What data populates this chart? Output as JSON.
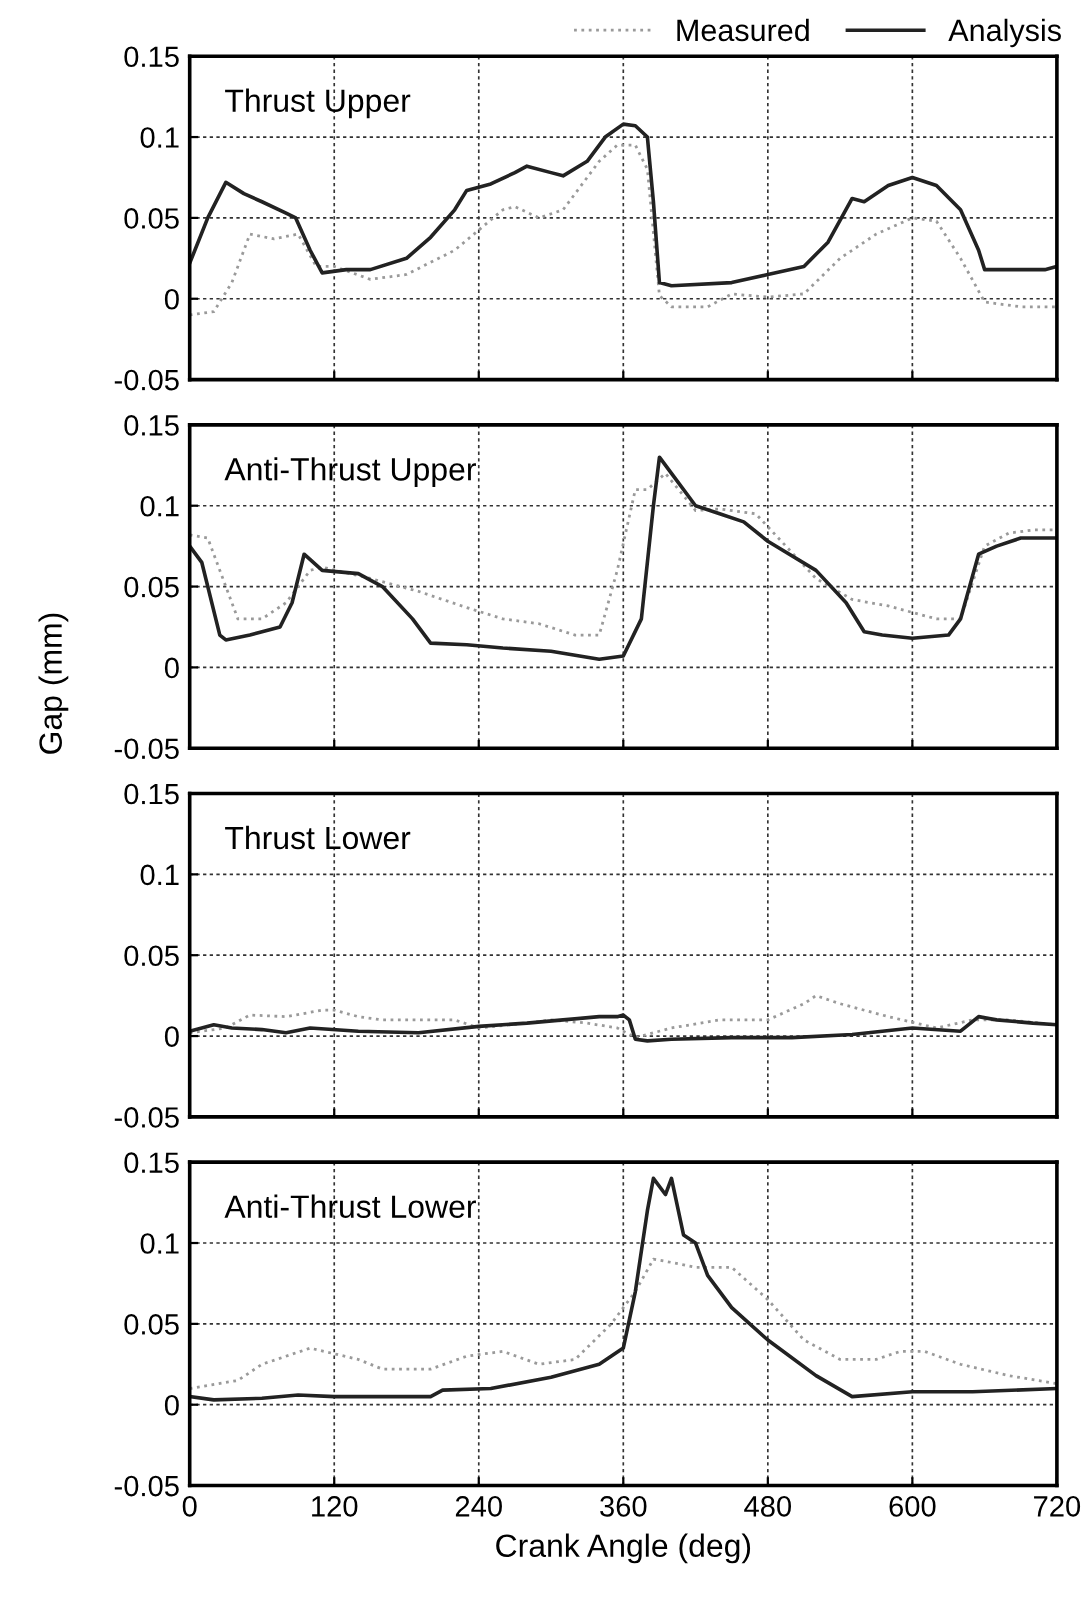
{
  "chart_data": [
    {
      "type": "line",
      "title": "Thrust Upper",
      "xlim": [
        0,
        720
      ],
      "xticks": [
        0,
        120,
        240,
        360,
        480,
        600,
        720
      ],
      "ylim": [
        -0.05,
        0.15
      ],
      "yticks": [
        -0.05,
        0,
        0.05,
        0.1,
        0.15
      ],
      "grid": true,
      "legend": "top right",
      "tick_labels": "y",
      "series": [
        {
          "name": "Measured",
          "color": "#9a9a9a",
          "line_style": "dotted",
          "x": [
            0,
            20,
            35,
            50,
            70,
            90,
            105,
            120,
            150,
            180,
            220,
            260,
            270,
            290,
            310,
            340,
            355,
            370,
            380,
            390,
            400,
            430,
            450,
            480,
            510,
            540,
            570,
            600,
            620,
            640,
            660,
            690,
            720
          ],
          "values": [
            -0.01,
            -0.008,
            0.01,
            0.04,
            0.037,
            0.04,
            0.02,
            0.02,
            0.012,
            0.015,
            0.03,
            0.055,
            0.057,
            0.05,
            0.055,
            0.085,
            0.095,
            0.095,
            0.08,
            0.002,
            -0.005,
            -0.005,
            0.003,
            0.001,
            0.003,
            0.025,
            0.04,
            0.05,
            0.048,
            0.025,
            -0.002,
            -0.005,
            -0.005
          ]
        },
        {
          "name": "Analysis",
          "color": "#222222",
          "line_style": "solid",
          "x": [
            0,
            15,
            30,
            45,
            60,
            80,
            88,
            100,
            110,
            130,
            150,
            180,
            200,
            220,
            230,
            250,
            270,
            280,
            300,
            310,
            330,
            345,
            360,
            370,
            380,
            385,
            390,
            400,
            450,
            480,
            510,
            530,
            550,
            560,
            580,
            600,
            620,
            640,
            655,
            660,
            680,
            710,
            720
          ],
          "values": [
            0.022,
            0.05,
            0.072,
            0.065,
            0.06,
            0.053,
            0.05,
            0.03,
            0.016,
            0.018,
            0.018,
            0.025,
            0.038,
            0.055,
            0.067,
            0.071,
            0.078,
            0.082,
            0.078,
            0.076,
            0.085,
            0.1,
            0.108,
            0.107,
            0.1,
            0.06,
            0.01,
            0.008,
            0.01,
            0.015,
            0.02,
            0.035,
            0.062,
            0.06,
            0.07,
            0.075,
            0.07,
            0.055,
            0.03,
            0.018,
            0.018,
            0.018,
            0.02
          ]
        }
      ]
    },
    {
      "type": "line",
      "title": "Anti-Thrust Upper",
      "ylabel": "Gap (mm)",
      "xlim": [
        0,
        720
      ],
      "xticks": [
        0,
        120,
        240,
        360,
        480,
        600,
        720
      ],
      "ylim": [
        -0.05,
        0.15
      ],
      "yticks": [
        -0.05,
        0,
        0.05,
        0.1,
        0.15
      ],
      "grid": true,
      "tick_labels": "y",
      "series": [
        {
          "color": "#9a9a9a",
          "line_style": "dotted",
          "x": [
            0,
            15,
            30,
            40,
            60,
            80,
            100,
            110,
            150,
            190,
            230,
            260,
            290,
            320,
            340,
            355,
            370,
            380,
            395,
            420,
            440,
            470,
            520,
            550,
            580,
            620,
            640,
            660,
            680,
            700,
            720
          ],
          "values": [
            0.082,
            0.08,
            0.05,
            0.03,
            0.03,
            0.04,
            0.06,
            0.062,
            0.055,
            0.047,
            0.037,
            0.03,
            0.027,
            0.02,
            0.02,
            0.06,
            0.11,
            0.11,
            0.12,
            0.097,
            0.098,
            0.095,
            0.055,
            0.042,
            0.038,
            0.03,
            0.03,
            0.075,
            0.083,
            0.085,
            0.085
          ]
        },
        {
          "color": "#222222",
          "line_style": "solid",
          "x": [
            0,
            10,
            25,
            30,
            50,
            75,
            85,
            95,
            110,
            140,
            160,
            185,
            200,
            230,
            260,
            300,
            340,
            360,
            375,
            385,
            390,
            400,
            420,
            440,
            460,
            480,
            520,
            545,
            560,
            575,
            600,
            630,
            640,
            655,
            670,
            690,
            720
          ],
          "values": [
            0.075,
            0.065,
            0.02,
            0.017,
            0.02,
            0.025,
            0.04,
            0.07,
            0.06,
            0.058,
            0.05,
            0.03,
            0.015,
            0.014,
            0.012,
            0.01,
            0.005,
            0.007,
            0.03,
            0.1,
            0.13,
            0.12,
            0.1,
            0.095,
            0.09,
            0.078,
            0.06,
            0.04,
            0.022,
            0.02,
            0.018,
            0.02,
            0.03,
            0.07,
            0.075,
            0.08,
            0.08
          ]
        }
      ]
    },
    {
      "type": "line",
      "title": "Thrust Lower",
      "xlim": [
        0,
        720
      ],
      "xticks": [
        0,
        120,
        240,
        360,
        480,
        600,
        720
      ],
      "ylim": [
        -0.05,
        0.15
      ],
      "yticks": [
        -0.05,
        0,
        0.05,
        0.1,
        0.15
      ],
      "grid": true,
      "tick_labels": "y",
      "series": [
        {
          "color": "#9a9a9a",
          "line_style": "dotted",
          "x": [
            0,
            30,
            50,
            80,
            110,
            120,
            140,
            160,
            190,
            220,
            240,
            280,
            300,
            330,
            355,
            370,
            400,
            440,
            480,
            510,
            520,
            540,
            580,
            620,
            650,
            680,
            720
          ],
          "values": [
            0.002,
            0.005,
            0.013,
            0.012,
            0.016,
            0.016,
            0.012,
            0.01,
            0.01,
            0.01,
            0.005,
            0.008,
            0.01,
            0.008,
            0.005,
            -0.001,
            0.005,
            0.01,
            0.01,
            0.02,
            0.025,
            0.02,
            0.012,
            0.005,
            0.01,
            0.01,
            0.007
          ]
        },
        {
          "color": "#222222",
          "line_style": "solid",
          "x": [
            0,
            20,
            35,
            60,
            80,
            100,
            140,
            190,
            240,
            280,
            310,
            340,
            355,
            360,
            365,
            370,
            380,
            400,
            450,
            500,
            550,
            600,
            640,
            655,
            670,
            700,
            720
          ],
          "values": [
            0.003,
            0.007,
            0.005,
            0.004,
            0.002,
            0.005,
            0.003,
            0.002,
            0.006,
            0.008,
            0.01,
            0.012,
            0.012,
            0.013,
            0.01,
            -0.002,
            -0.003,
            -0.002,
            -0.001,
            -0.001,
            0.001,
            0.005,
            0.003,
            0.012,
            0.01,
            0.008,
            0.007
          ]
        }
      ]
    },
    {
      "type": "line",
      "title": "Anti-Thrust Lower",
      "xlabel": "Crank Angle (deg)",
      "xlim": [
        0,
        720
      ],
      "xticks": [
        0,
        120,
        240,
        360,
        480,
        600,
        720
      ],
      "ylim": [
        -0.05,
        0.15
      ],
      "yticks": [
        -0.05,
        0,
        0.05,
        0.1,
        0.15
      ],
      "grid": true,
      "series": [
        {
          "color": "#9a9a9a",
          "line_style": "dotted",
          "x": [
            0,
            40,
            60,
            100,
            140,
            160,
            200,
            230,
            260,
            290,
            320,
            350,
            370,
            385,
            400,
            420,
            450,
            480,
            510,
            540,
            570,
            590,
            610,
            640,
            680,
            720
          ],
          "values": [
            0.01,
            0.015,
            0.025,
            0.035,
            0.028,
            0.022,
            0.022,
            0.03,
            0.033,
            0.025,
            0.028,
            0.05,
            0.07,
            0.09,
            0.088,
            0.085,
            0.085,
            0.065,
            0.04,
            0.028,
            0.028,
            0.033,
            0.033,
            0.025,
            0.018,
            0.013
          ]
        },
        {
          "color": "#222222",
          "line_style": "solid",
          "x": [
            0,
            20,
            60,
            90,
            120,
            200,
            210,
            250,
            300,
            340,
            360,
            370,
            380,
            385,
            395,
            400,
            410,
            420,
            430,
            450,
            480,
            520,
            550,
            600,
            650,
            720
          ],
          "values": [
            0.005,
            0.003,
            0.004,
            0.006,
            0.005,
            0.005,
            0.009,
            0.01,
            0.017,
            0.025,
            0.035,
            0.07,
            0.12,
            0.14,
            0.13,
            0.14,
            0.105,
            0.1,
            0.08,
            0.06,
            0.04,
            0.018,
            0.005,
            0.008,
            0.008,
            0.01
          ]
        }
      ]
    }
  ]
}
